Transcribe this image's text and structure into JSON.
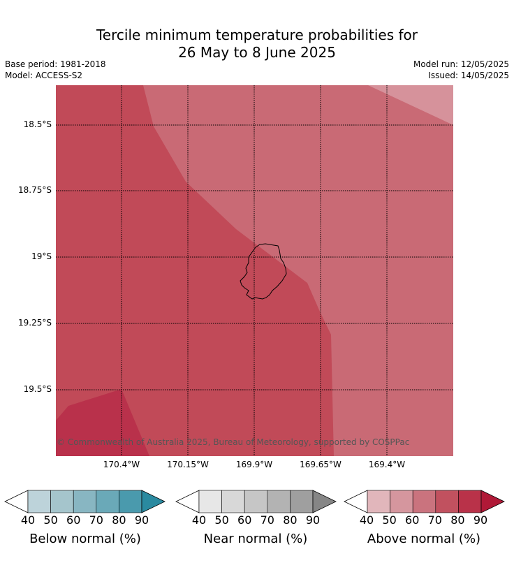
{
  "title": {
    "line1": "Tercile minimum temperature probabilities for",
    "line2": "26 May to 8 June 2025"
  },
  "meta": {
    "base_period": "Base period: 1981-2018",
    "model": "Model: ACCESS-S2",
    "model_run": "Model run: 12/05/2025",
    "issued": "Issued: 14/05/2025"
  },
  "map": {
    "lat_ticks": [
      "18.5°S",
      "18.75°S",
      "19°S",
      "19.25°S",
      "19.5°S"
    ],
    "lon_ticks": [
      "170.4°W",
      "170.15°W",
      "169.9°W",
      "169.65°W",
      "169.4°W"
    ],
    "copyright": "© Commonwealth of Australia 2025, Bureau of Meteorology, supported by COSPPac",
    "region_colors": {
      "above_90": "#b9314b",
      "above_80": "#c14a58",
      "above_70": "#c96a75",
      "above_60": "#d6929b"
    },
    "island_outline_color": "#000000"
  },
  "colorbars": [
    {
      "label": "Below normal (%)",
      "ticks": [
        "40",
        "50",
        "60",
        "70",
        "80",
        "90"
      ],
      "colors": [
        "#ffffff",
        "#bdd3da",
        "#a5c5cc",
        "#88b6c2",
        "#6aa9b8",
        "#4a9aad",
        "#2a8aa0"
      ]
    },
    {
      "label": "Near normal (%)",
      "ticks": [
        "40",
        "50",
        "60",
        "70",
        "80",
        "90"
      ],
      "colors": [
        "#ffffff",
        "#e7e7e7",
        "#d8d8d8",
        "#c6c6c6",
        "#b3b3b3",
        "#9f9f9f",
        "#868686"
      ]
    },
    {
      "label": "Above normal (%)",
      "ticks": [
        "40",
        "50",
        "60",
        "70",
        "80",
        "90"
      ],
      "colors": [
        "#ffffff",
        "#e1b6bb",
        "#d5969e",
        "#ca737e",
        "#c1515f",
        "#b93249",
        "#b01937"
      ]
    }
  ]
}
